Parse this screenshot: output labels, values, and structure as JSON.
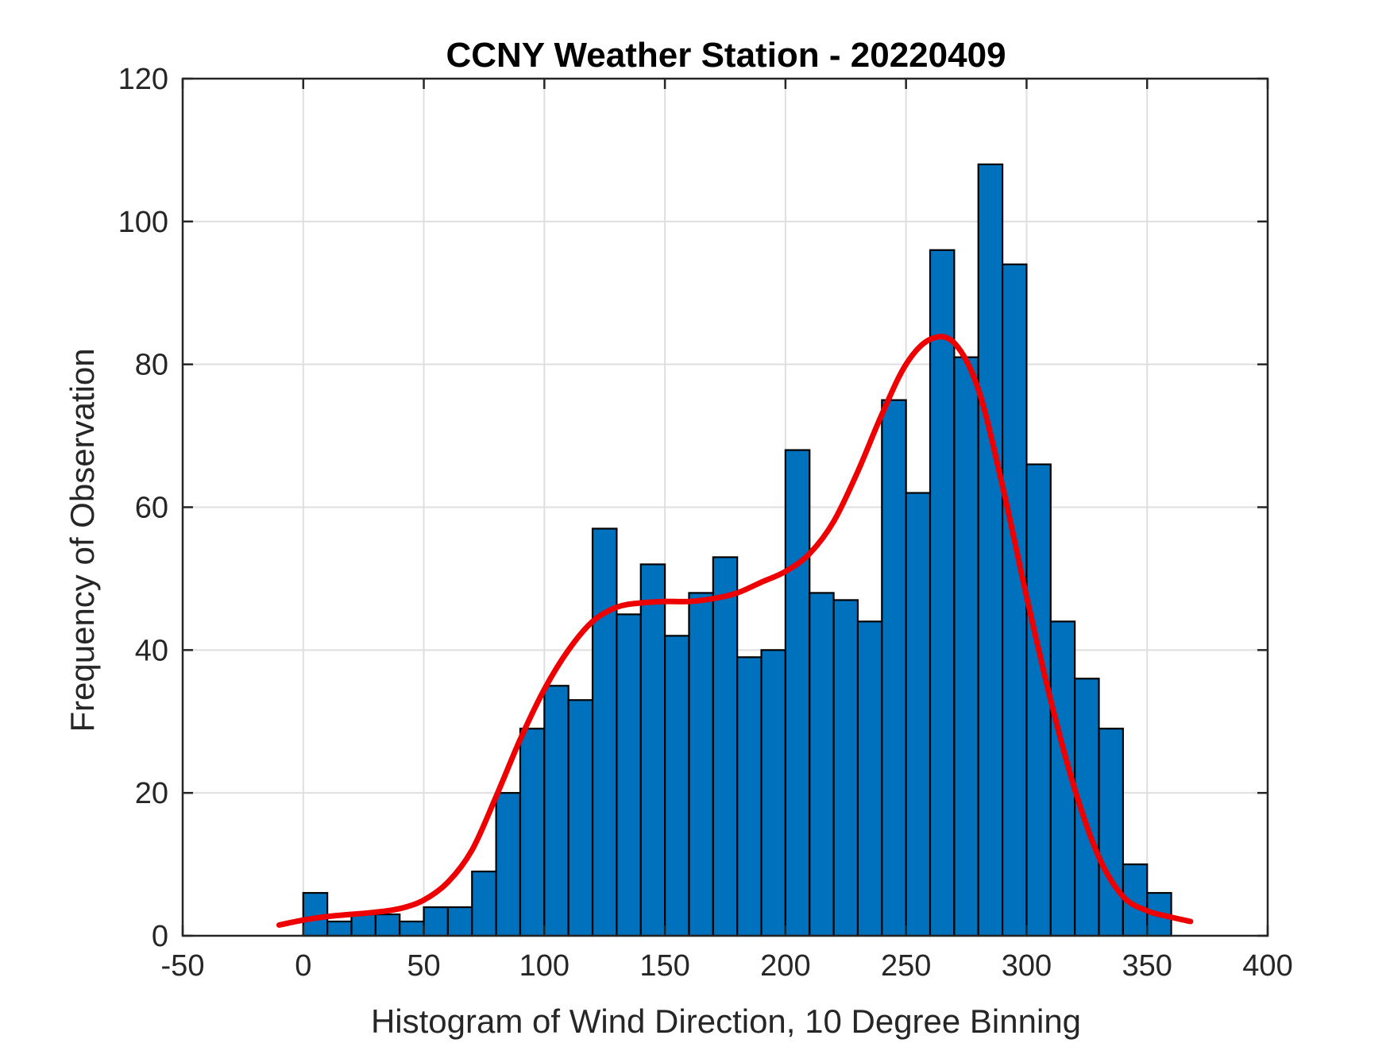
{
  "chart_data": {
    "type": "bar",
    "title": "CCNY Weather Station - 20220409",
    "xlabel": "Histogram of Wind Direction, 10 Degree Binning",
    "ylabel": "Frequency of Observation",
    "xlim": [
      -50,
      400
    ],
    "ylim": [
      0,
      120
    ],
    "xticks": [
      -50,
      0,
      50,
      100,
      150,
      200,
      250,
      300,
      350,
      400
    ],
    "yticks": [
      0,
      20,
      40,
      60,
      80,
      100,
      120
    ],
    "grid": true,
    "bin_width": 10,
    "bin_edges": [
      0,
      10,
      20,
      30,
      40,
      50,
      60,
      70,
      80,
      90,
      100,
      110,
      120,
      130,
      140,
      150,
      160,
      170,
      180,
      190,
      200,
      210,
      220,
      230,
      240,
      250,
      260,
      270,
      280,
      290,
      300,
      310,
      320,
      330,
      340,
      350
    ],
    "values": [
      6,
      2,
      3,
      3,
      2,
      4,
      4,
      9,
      20,
      29,
      35,
      33,
      57,
      45,
      52,
      42,
      48,
      53,
      39,
      40,
      68,
      48,
      47,
      44,
      75,
      62,
      96,
      81,
      108,
      94,
      66,
      44,
      36,
      29,
      10,
      6
    ],
    "bar_color": "#0072BD",
    "bar_edge_color": "#000000",
    "fit_curve": {
      "color": "#EE0000",
      "x": [
        -10,
        0,
        10,
        20,
        30,
        40,
        50,
        60,
        70,
        80,
        90,
        100,
        110,
        120,
        130,
        140,
        150,
        160,
        170,
        180,
        190,
        200,
        210,
        220,
        230,
        240,
        250,
        260,
        270,
        280,
        290,
        300,
        310,
        320,
        330,
        340,
        350,
        360,
        368
      ],
      "y": [
        1.5,
        2.2,
        2.7,
        3.0,
        3.3,
        3.8,
        5.0,
        7.5,
        12.0,
        19.5,
        27.5,
        34.5,
        40.0,
        44.0,
        46.0,
        46.6,
        46.8,
        46.8,
        47.2,
        48.0,
        49.5,
        51.0,
        53.5,
        58.0,
        65.0,
        73.0,
        80.0,
        83.5,
        83.0,
        76.5,
        63.0,
        47.5,
        33.0,
        20.5,
        11.0,
        5.5,
        3.5,
        2.6,
        2.0
      ]
    }
  }
}
